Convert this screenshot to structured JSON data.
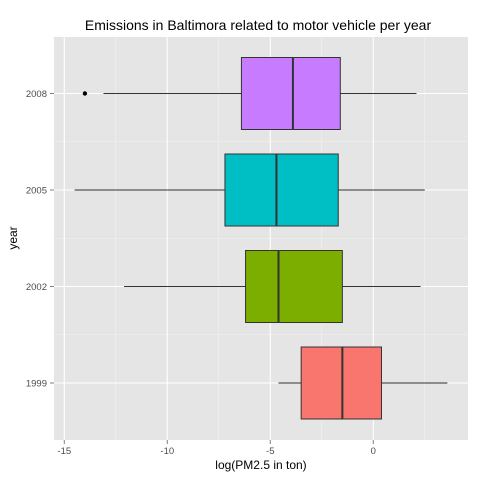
{
  "chart_data": {
    "type": "boxplot",
    "orientation": "horizontal",
    "title": "Emissions in Baltimora related to motor vehicle per year",
    "xlabel": "log(PM2.5 in ton)",
    "ylabel": "year",
    "xlim": [
      -15.5,
      4.6
    ],
    "x_ticks": [
      -15,
      -10,
      -5,
      0
    ],
    "x_tick_labels": [
      "-15",
      "-10",
      "-5",
      "0"
    ],
    "grid": true,
    "legend": "none",
    "categories": [
      "1999",
      "2002",
      "2005",
      "2008"
    ],
    "series": [
      {
        "category": "1999",
        "whisker_low": -4.6,
        "q1": -3.5,
        "median": -1.5,
        "q3": 0.4,
        "whisker_high": 3.6,
        "outliers": [],
        "color": "#F8766D"
      },
      {
        "category": "2002",
        "whisker_low": -12.1,
        "q1": -6.2,
        "median": -4.6,
        "q3": -1.5,
        "whisker_high": 2.3,
        "outliers": [],
        "color": "#7CAE00"
      },
      {
        "category": "2005",
        "whisker_low": -14.5,
        "q1": -7.2,
        "median": -4.7,
        "q3": -1.7,
        "whisker_high": 2.5,
        "outliers": [],
        "color": "#00BFC4"
      },
      {
        "category": "2008",
        "whisker_low": -13.1,
        "q1": -6.4,
        "median": -3.9,
        "q3": -1.6,
        "whisker_high": 2.1,
        "outliers": [
          -14.0
        ],
        "color": "#C77CFF"
      }
    ],
    "colors": {
      "panel_background": "#E5E5E5",
      "grid_major": "#FFFFFF",
      "grid_minor": "#F2F2F2",
      "box_outline": "#333333",
      "whisker": "#333333"
    }
  }
}
